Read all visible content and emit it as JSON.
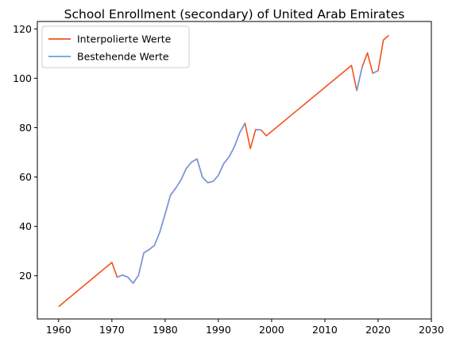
{
  "chart_data": {
    "type": "line",
    "title": "School Enrollment (secondary) of United Arab Emirates",
    "xlabel": "",
    "ylabel": "",
    "xlim": [
      1956,
      2030
    ],
    "ylim": [
      2.5,
      123
    ],
    "xticks": [
      1960,
      1970,
      1980,
      1990,
      2000,
      2010,
      2020,
      2030
    ],
    "yticks": [
      20,
      40,
      60,
      80,
      100,
      120
    ],
    "grid": false,
    "legend_position": "top-left",
    "series": [
      {
        "name": "Interpolierte Werte",
        "color": "#f4511e",
        "x": [
          1960,
          1970,
          1971,
          1972,
          1973,
          1974,
          1975,
          1976,
          1977,
          1978,
          1979,
          1980,
          1981,
          1982,
          1983,
          1984,
          1985,
          1986,
          1987,
          1988,
          1989,
          1990,
          1991,
          1992,
          1993,
          1994,
          1995,
          1996,
          1997,
          1998,
          1999,
          2015,
          2016,
          2017,
          2018,
          2019,
          2020,
          2021,
          2022
        ],
        "y": [
          7.5,
          25.4,
          19.4,
          20.3,
          19.4,
          17.0,
          20.2,
          29.3,
          30.6,
          32.3,
          37.7,
          45.0,
          52.6,
          55.5,
          58.9,
          63.6,
          66.1,
          67.3,
          60.0,
          57.7,
          58.2,
          60.7,
          65.4,
          68.1,
          72.2,
          77.9,
          81.8,
          71.5,
          79.2,
          79.1,
          76.7,
          105.2,
          95.0,
          104.5,
          110.3,
          102.0,
          103.1,
          115.5,
          117.4
        ]
      },
      {
        "name": "Bestehende Werte",
        "color": "#6f9be8",
        "segments": [
          {
            "x": [
              1971,
              1972,
              1973,
              1974,
              1975,
              1976,
              1977,
              1978,
              1979,
              1980,
              1981,
              1982,
              1983,
              1984,
              1985,
              1986,
              1987,
              1988,
              1989,
              1990,
              1991,
              1992,
              1993,
              1994,
              1995
            ],
            "y": [
              19.4,
              20.3,
              19.4,
              17.0,
              20.2,
              29.3,
              30.6,
              32.3,
              37.7,
              45.0,
              52.6,
              55.5,
              58.9,
              63.6,
              66.1,
              67.3,
              60.0,
              57.7,
              58.2,
              60.7,
              65.4,
              68.1,
              72.2,
              77.9,
              81.8
            ]
          },
          {
            "x": [
              1997,
              1998
            ],
            "y": [
              79.2,
              79.1
            ]
          },
          {
            "x": [
              2016,
              2017
            ],
            "y": [
              95.0,
              104.5
            ]
          },
          {
            "x": [
              2019,
              2020
            ],
            "y": [
              102.0,
              103.1
            ]
          }
        ]
      }
    ]
  }
}
